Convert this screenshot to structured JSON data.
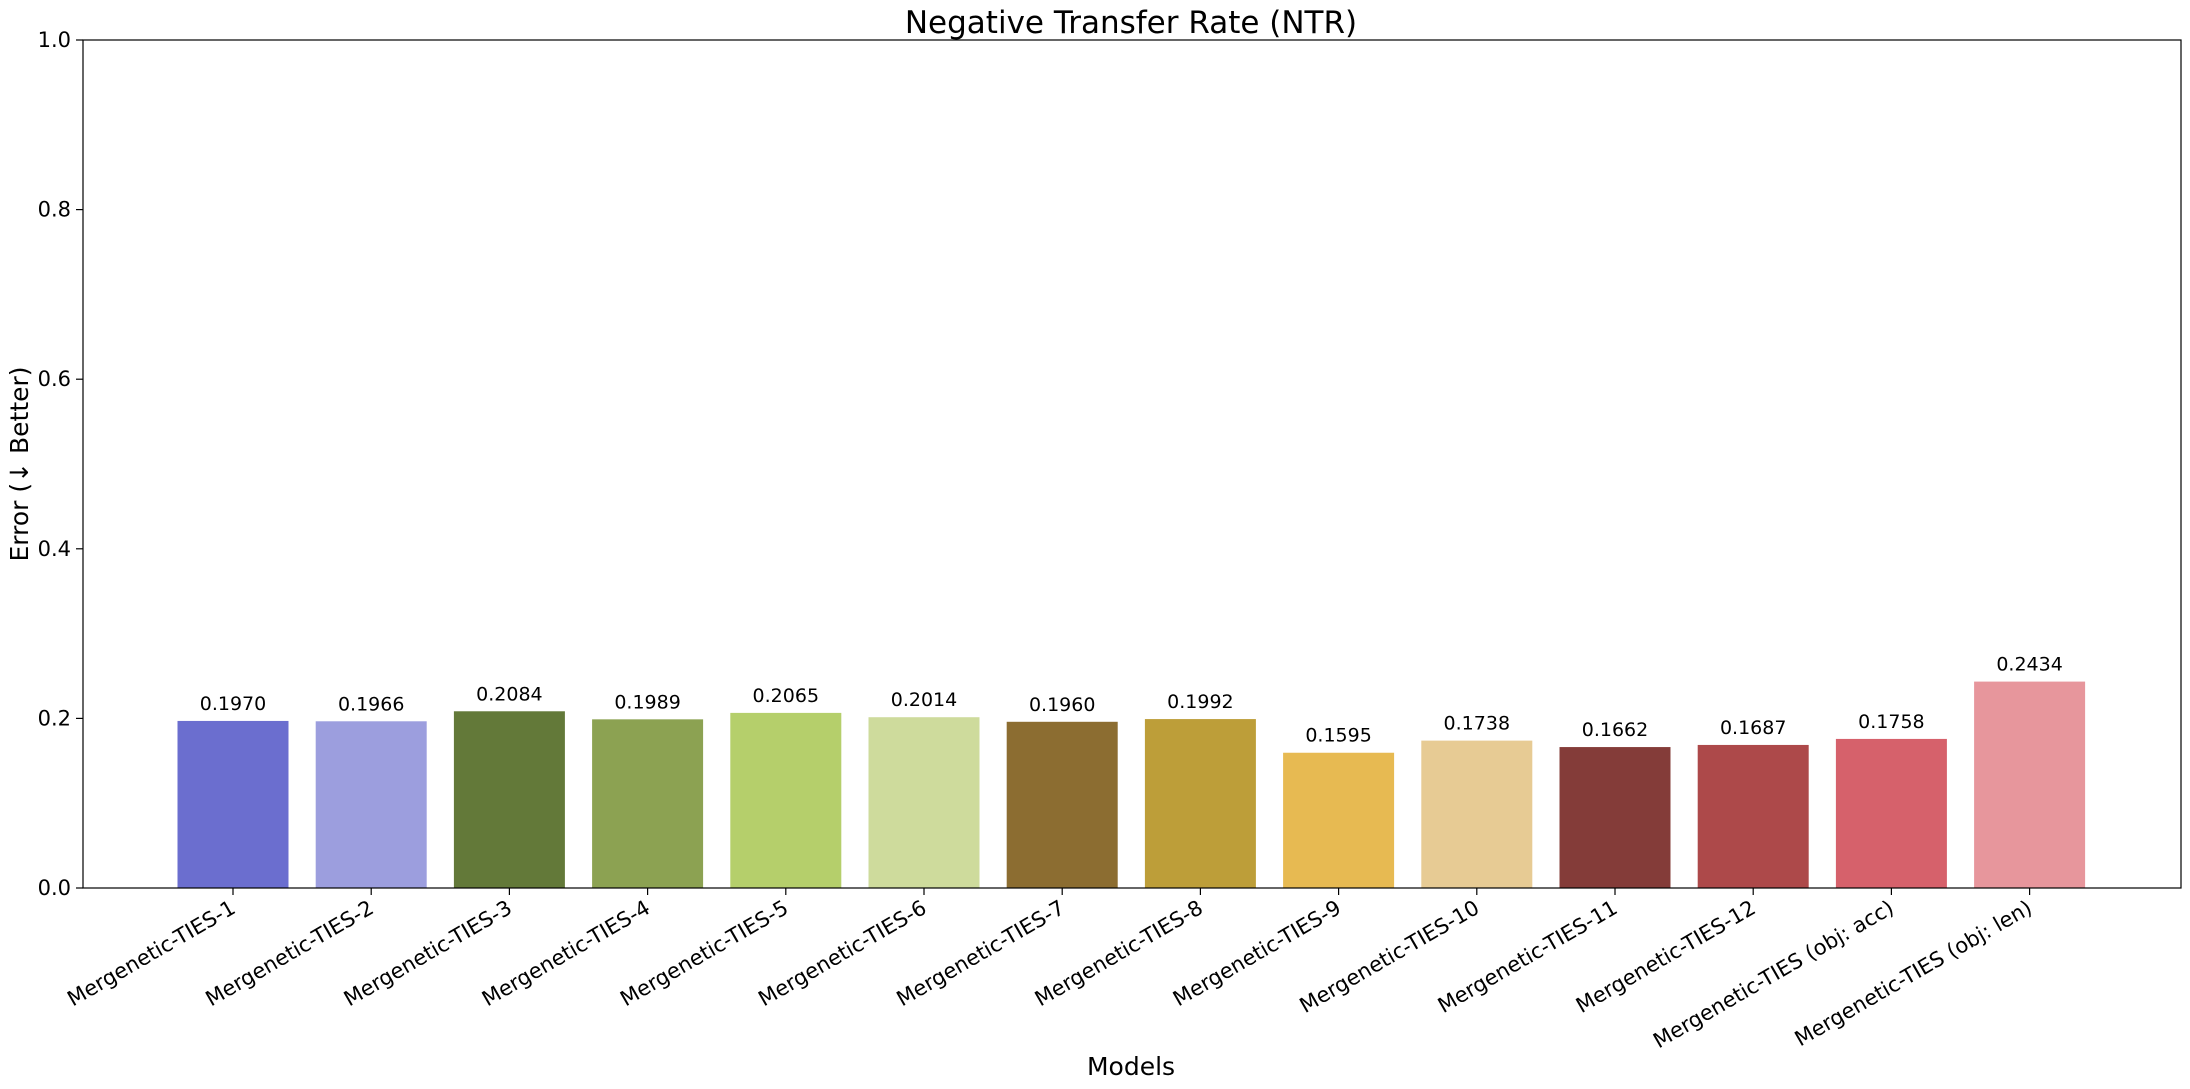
{
  "chart_data": {
    "type": "bar",
    "title": "Negative Transfer Rate (NTR)",
    "xlabel": "Models",
    "ylabel": "Error (↓ Better)",
    "ylim": [
      0,
      1.0
    ],
    "yticks": [
      0.0,
      0.2,
      0.4,
      0.6,
      0.8,
      1.0
    ],
    "ytick_labels": [
      "0.0",
      "0.2",
      "0.4",
      "0.6",
      "0.8",
      "1.0"
    ],
    "grid": false,
    "categories": [
      "Mergenetic-TIES-1",
      "Mergenetic-TIES-2",
      "Mergenetic-TIES-3",
      "Mergenetic-TIES-4",
      "Mergenetic-TIES-5",
      "Mergenetic-TIES-6",
      "Mergenetic-TIES-7",
      "Mergenetic-TIES-8",
      "Mergenetic-TIES-9",
      "Mergenetic-TIES-10",
      "Mergenetic-TIES-11",
      "Mergenetic-TIES-12",
      "Mergenetic-TIES (obj: acc)",
      "Mergenetic-TIES (obj: len)"
    ],
    "values": [
      0.197,
      0.1966,
      0.2084,
      0.1989,
      0.2065,
      0.2014,
      0.196,
      0.1992,
      0.1595,
      0.1738,
      0.1662,
      0.1687,
      0.1758,
      0.2434
    ],
    "value_labels": [
      "0.1970",
      "0.1966",
      "0.2084",
      "0.1989",
      "0.2065",
      "0.2014",
      "0.1960",
      "0.1992",
      "0.1595",
      "0.1738",
      "0.1662",
      "0.1687",
      "0.1758",
      "0.2434"
    ],
    "colors": [
      "#6b6ecf",
      "#9c9ede",
      "#637939",
      "#8ca252",
      "#b5cf6b",
      "#cedb9c",
      "#8c6d31",
      "#bd9e39",
      "#e7ba52",
      "#e7cb94",
      "#843c39",
      "#ad494a",
      "#d6616b",
      "#e7969c"
    ]
  }
}
